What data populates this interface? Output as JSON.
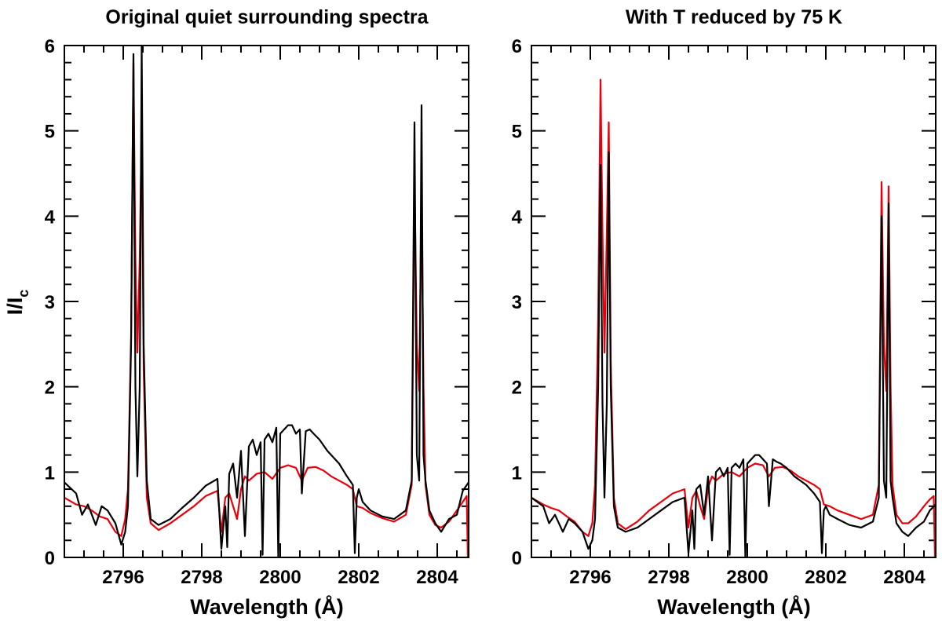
{
  "chart_data": [
    {
      "type": "line",
      "title": "Original quiet surrounding spectra",
      "xlabel": "Wavelength (Å)",
      "ylabel": "I/I",
      "ylabel_sub": "c",
      "xlim": [
        2794.5,
        2804.8
      ],
      "ylim": [
        0,
        6
      ],
      "xticks": [
        "2796",
        "2798",
        "2800",
        "2802",
        "2804"
      ],
      "yticks": [
        "0",
        "1",
        "2",
        "3",
        "4",
        "5",
        "6"
      ],
      "series": [
        {
          "color": "#000000",
          "x": [
            2794.5,
            2794.8,
            2794.95,
            2795.1,
            2795.3,
            2795.45,
            2795.6,
            2795.8,
            2795.95,
            2796.05,
            2796.12,
            2796.2,
            2796.26,
            2796.31,
            2796.36,
            2796.42,
            2796.47,
            2796.52,
            2796.6,
            2796.7,
            2796.9,
            2797.2,
            2797.5,
            2797.8,
            2798.1,
            2798.4,
            2798.5,
            2798.6,
            2798.65,
            2798.7,
            2798.8,
            2798.9,
            2799.0,
            2799.1,
            2799.2,
            2799.3,
            2799.4,
            2799.5,
            2799.55,
            2799.6,
            2799.7,
            2799.8,
            2799.9,
            2799.95,
            2800.0,
            2800.1,
            2800.2,
            2800.3,
            2800.4,
            2800.5,
            2800.55,
            2800.65,
            2800.75,
            2800.85,
            2801.0,
            2801.2,
            2801.5,
            2801.7,
            2801.85,
            2801.9,
            2801.95,
            2802.0,
            2802.1,
            2802.3,
            2802.6,
            2802.9,
            2803.2,
            2803.35,
            2803.42,
            2803.48,
            2803.54,
            2803.6,
            2803.65,
            2803.7,
            2803.8,
            2803.95,
            2804.1,
            2804.3,
            2804.5,
            2804.65,
            2804.8
          ],
          "y": [
            0.88,
            0.75,
            0.5,
            0.62,
            0.38,
            0.6,
            0.55,
            0.4,
            0.15,
            0.3,
            0.6,
            2.5,
            5.9,
            2.0,
            0.95,
            2.0,
            6.0,
            2.5,
            0.9,
            0.45,
            0.38,
            0.45,
            0.58,
            0.7,
            0.84,
            0.92,
            0.1,
            0.6,
            0.12,
            0.98,
            1.1,
            0.7,
            1.25,
            0.25,
            1.3,
            1.38,
            1.2,
            1.35,
            0.03,
            1.38,
            1.45,
            1.35,
            1.52,
            0.0,
            1.45,
            1.5,
            1.55,
            1.55,
            1.45,
            1.5,
            0.75,
            1.48,
            1.5,
            1.45,
            1.38,
            1.25,
            1.1,
            0.95,
            0.85,
            0.05,
            0.7,
            0.8,
            0.65,
            0.55,
            0.48,
            0.45,
            0.55,
            0.9,
            5.1,
            1.2,
            0.9,
            5.3,
            1.2,
            0.9,
            0.55,
            0.4,
            0.3,
            0.45,
            0.5,
            0.78,
            0.88
          ]
        },
        {
          "color": "#e8000b",
          "x": [
            2794.5,
            2794.8,
            2795.0,
            2795.2,
            2795.4,
            2795.6,
            2795.8,
            2795.95,
            2796.05,
            2796.12,
            2796.2,
            2796.26,
            2796.31,
            2796.36,
            2796.42,
            2796.47,
            2796.52,
            2796.6,
            2796.7,
            2796.9,
            2797.2,
            2797.5,
            2797.8,
            2798.1,
            2798.4,
            2798.5,
            2798.6,
            2798.7,
            2798.8,
            2798.9,
            2799.0,
            2799.1,
            2799.2,
            2799.4,
            2799.6,
            2799.8,
            2800.0,
            2800.2,
            2800.4,
            2800.55,
            2800.7,
            2800.9,
            2801.1,
            2801.3,
            2801.5,
            2801.7,
            2801.85,
            2801.95,
            2802.1,
            2802.3,
            2802.6,
            2802.9,
            2803.2,
            2803.35,
            2803.42,
            2803.48,
            2803.54,
            2803.6,
            2803.65,
            2803.7,
            2803.8,
            2803.95,
            2804.1,
            2804.3,
            2804.5,
            2804.65,
            2804.75,
            2804.78
          ],
          "y": [
            0.7,
            0.62,
            0.6,
            0.55,
            0.48,
            0.45,
            0.3,
            0.25,
            0.45,
            0.8,
            2.6,
            5.8,
            3.5,
            2.4,
            3.5,
            5.1,
            2.2,
            0.7,
            0.4,
            0.32,
            0.4,
            0.5,
            0.6,
            0.72,
            0.78,
            0.3,
            0.7,
            0.75,
            0.6,
            0.45,
            0.8,
            0.95,
            0.9,
            0.98,
            1.0,
            0.92,
            1.05,
            1.08,
            1.05,
            0.9,
            1.05,
            1.06,
            1.02,
            0.95,
            0.9,
            0.85,
            0.8,
            0.6,
            0.58,
            0.52,
            0.46,
            0.42,
            0.5,
            0.85,
            4.4,
            2.5,
            1.95,
            4.3,
            2.0,
            0.85,
            0.5,
            0.38,
            0.35,
            0.42,
            0.55,
            0.65,
            0.72,
            0.0
          ]
        }
      ]
    },
    {
      "type": "line",
      "title": "With T reduced by 75 K",
      "xlabel": "Wavelength (Å)",
      "xlim": [
        2794.5,
        2804.8
      ],
      "ylim": [
        0,
        6
      ],
      "xticks": [
        "2796",
        "2798",
        "2800",
        "2802",
        "2804"
      ],
      "yticks": [
        "0",
        "1",
        "2",
        "3",
        "4",
        "5",
        "6"
      ],
      "series": [
        {
          "color": "#000000",
          "x": [
            2794.5,
            2794.8,
            2794.95,
            2795.1,
            2795.3,
            2795.45,
            2795.6,
            2795.8,
            2795.95,
            2796.05,
            2796.12,
            2796.2,
            2796.26,
            2796.31,
            2796.36,
            2796.42,
            2796.47,
            2796.52,
            2796.6,
            2796.7,
            2796.9,
            2797.2,
            2797.5,
            2797.8,
            2798.1,
            2798.4,
            2798.5,
            2798.6,
            2798.65,
            2798.7,
            2798.8,
            2798.9,
            2799.0,
            2799.1,
            2799.2,
            2799.3,
            2799.4,
            2799.5,
            2799.55,
            2799.6,
            2799.7,
            2799.8,
            2799.9,
            2799.95,
            2800.0,
            2800.1,
            2800.2,
            2800.3,
            2800.4,
            2800.5,
            2800.55,
            2800.65,
            2800.75,
            2800.85,
            2801.0,
            2801.2,
            2801.5,
            2801.7,
            2801.85,
            2801.9,
            2801.95,
            2802.0,
            2802.1,
            2802.3,
            2802.6,
            2802.9,
            2803.2,
            2803.35,
            2803.42,
            2803.48,
            2803.54,
            2803.6,
            2803.65,
            2803.7,
            2803.8,
            2803.95,
            2804.1,
            2804.3,
            2804.5,
            2804.65,
            2804.8
          ],
          "y": [
            0.7,
            0.6,
            0.4,
            0.5,
            0.3,
            0.45,
            0.4,
            0.3,
            0.1,
            0.2,
            0.45,
            2.0,
            4.6,
            1.8,
            0.7,
            1.8,
            4.75,
            2.0,
            0.6,
            0.35,
            0.3,
            0.35,
            0.45,
            0.55,
            0.65,
            0.7,
            0.05,
            0.55,
            0.1,
            0.8,
            0.85,
            0.5,
            0.95,
            0.2,
            1.0,
            1.05,
            0.95,
            1.05,
            0.03,
            1.05,
            1.1,
            1.05,
            1.15,
            0.0,
            1.1,
            1.15,
            1.2,
            1.2,
            1.15,
            1.1,
            0.6,
            1.15,
            1.12,
            1.1,
            1.05,
            0.95,
            0.85,
            0.75,
            0.65,
            0.05,
            0.55,
            0.6,
            0.5,
            0.45,
            0.38,
            0.35,
            0.42,
            0.7,
            4.0,
            0.9,
            0.7,
            4.15,
            0.9,
            0.7,
            0.4,
            0.3,
            0.25,
            0.35,
            0.42,
            0.55,
            0.62
          ]
        },
        {
          "color": "#e8000b",
          "x": [
            2794.5,
            2794.8,
            2795.0,
            2795.2,
            2795.4,
            2795.6,
            2795.8,
            2795.95,
            2796.05,
            2796.12,
            2796.2,
            2796.26,
            2796.31,
            2796.36,
            2796.42,
            2796.47,
            2796.52,
            2796.6,
            2796.7,
            2796.9,
            2797.2,
            2797.5,
            2797.8,
            2798.1,
            2798.4,
            2798.5,
            2798.6,
            2798.7,
            2798.8,
            2798.9,
            2799.0,
            2799.1,
            2799.2,
            2799.4,
            2799.6,
            2799.8,
            2800.0,
            2800.2,
            2800.4,
            2800.55,
            2800.7,
            2800.9,
            2801.1,
            2801.3,
            2801.5,
            2801.7,
            2801.85,
            2801.95,
            2802.1,
            2802.3,
            2802.6,
            2802.9,
            2803.2,
            2803.35,
            2803.42,
            2803.48,
            2803.54,
            2803.6,
            2803.65,
            2803.7,
            2803.8,
            2803.95,
            2804.1,
            2804.3,
            2804.5,
            2804.65,
            2804.75,
            2804.78
          ],
          "y": [
            0.7,
            0.62,
            0.58,
            0.55,
            0.48,
            0.42,
            0.3,
            0.25,
            0.4,
            0.85,
            2.8,
            5.6,
            3.8,
            2.4,
            3.8,
            5.1,
            2.3,
            0.7,
            0.4,
            0.33,
            0.42,
            0.55,
            0.65,
            0.75,
            0.8,
            0.35,
            0.7,
            0.78,
            0.6,
            0.45,
            0.82,
            0.95,
            0.9,
            0.98,
            1.0,
            0.95,
            1.05,
            1.1,
            1.08,
            0.95,
            1.05,
            1.06,
            1.02,
            0.95,
            0.9,
            0.85,
            0.8,
            0.62,
            0.6,
            0.55,
            0.5,
            0.45,
            0.5,
            0.85,
            4.4,
            2.5,
            1.95,
            4.35,
            2.0,
            0.85,
            0.5,
            0.4,
            0.4,
            0.48,
            0.6,
            0.68,
            0.72,
            0.0
          ]
        }
      ]
    }
  ]
}
